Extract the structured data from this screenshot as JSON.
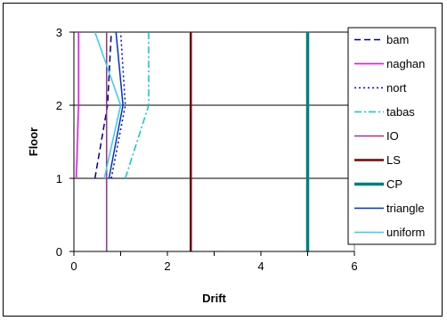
{
  "chart_data": {
    "type": "line",
    "title": "",
    "xlabel": "Drift",
    "ylabel": "Floor",
    "xlim": [
      0,
      6
    ],
    "ylim": [
      0,
      3
    ],
    "x_ticks": [
      "0",
      "2",
      "4",
      "6"
    ],
    "y_ticks": [
      "0",
      "1",
      "2",
      "3"
    ],
    "grid": "horizontal",
    "legend_position": "right",
    "series": [
      {
        "name": "bam",
        "color": "#000080",
        "dash": "dashed",
        "points": [
          [
            0.45,
            1
          ],
          [
            0.72,
            2
          ],
          [
            0.8,
            3
          ]
        ]
      },
      {
        "name": "naghan",
        "color": "#FF00FF",
        "dash": "solid",
        "points": [
          [
            0.05,
            1
          ],
          [
            0.1,
            2
          ],
          [
            0.1,
            3
          ]
        ]
      },
      {
        "name": "nort",
        "color": "#0000FF",
        "dash": "dotted",
        "points": [
          [
            0.8,
            1
          ],
          [
            1.1,
            2
          ],
          [
            1.0,
            3
          ]
        ]
      },
      {
        "name": "tabas",
        "color": "#00CCCC",
        "dash": "dashdot",
        "points": [
          [
            1.1,
            1
          ],
          [
            1.6,
            2
          ],
          [
            1.6,
            3
          ]
        ]
      },
      {
        "name": "IO",
        "color": "#993399",
        "dash": "solid",
        "points": [
          [
            0.7,
            0
          ],
          [
            0.7,
            3
          ]
        ]
      },
      {
        "name": "LS",
        "color": "#800000",
        "dash": "solid",
        "points": [
          [
            2.5,
            0
          ],
          [
            2.5,
            3
          ]
        ]
      },
      {
        "name": "CP",
        "color": "#008080",
        "dash": "solid",
        "points": [
          [
            5.0,
            0
          ],
          [
            5.0,
            3
          ]
        ]
      },
      {
        "name": "triangle",
        "color": "#0033CC",
        "dash": "solid",
        "points": [
          [
            0.75,
            1
          ],
          [
            1.05,
            2
          ],
          [
            0.9,
            3
          ]
        ]
      },
      {
        "name": "uniform",
        "color": "#33CCFF",
        "dash": "solid",
        "points": [
          [
            0.65,
            1
          ],
          [
            1.0,
            2
          ],
          [
            0.45,
            3
          ]
        ]
      }
    ]
  }
}
